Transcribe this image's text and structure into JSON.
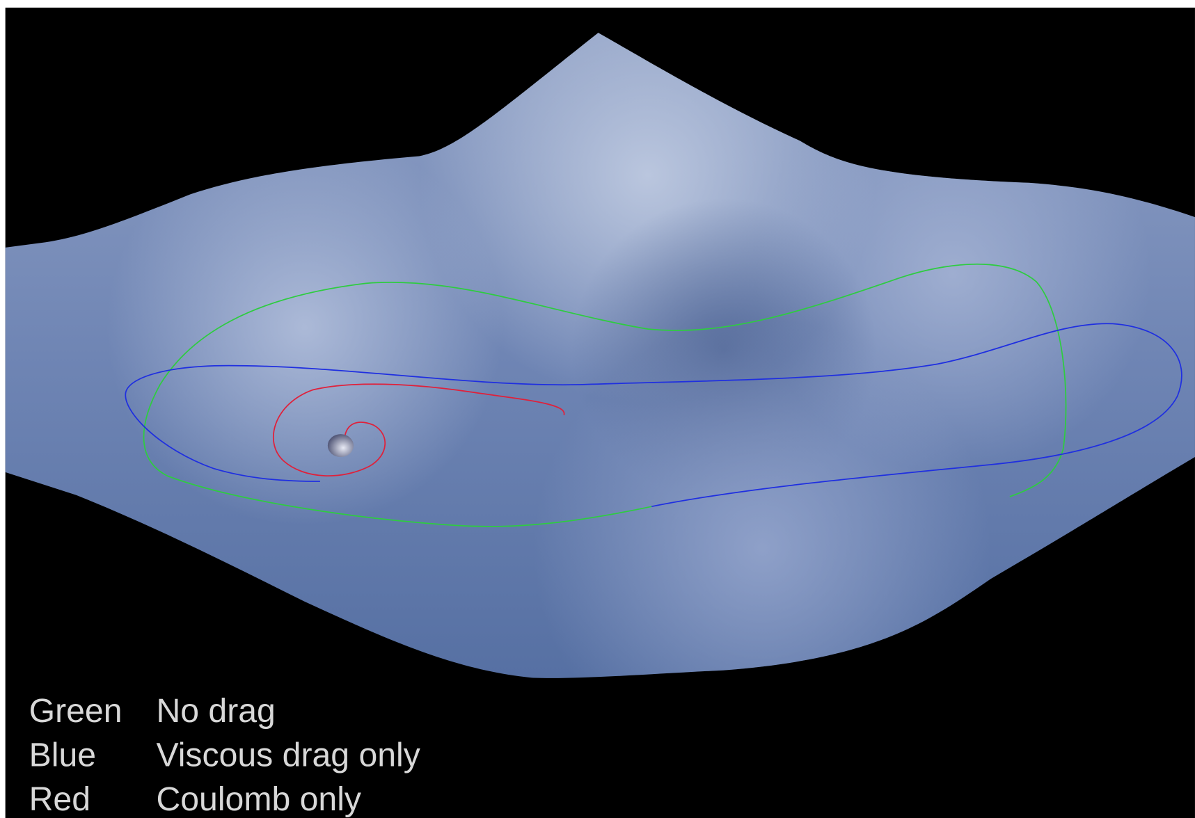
{
  "legend": {
    "rows": [
      [
        "Green",
        "No drag"
      ],
      [
        "Blue",
        "Viscous drag only"
      ],
      [
        "Red",
        "Coulomb only"
      ]
    ]
  }
}
